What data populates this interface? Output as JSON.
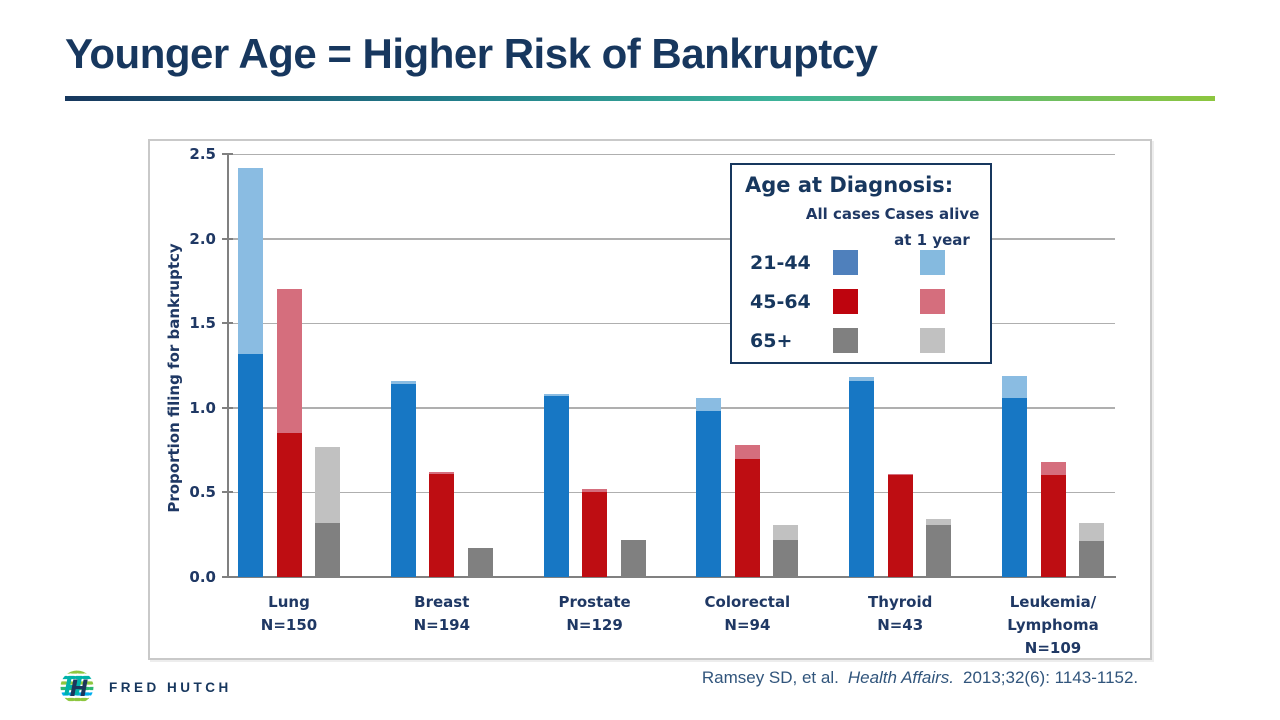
{
  "slide": {
    "title": "Younger Age = Higher Risk of Bankruptcy",
    "citation": {
      "prefix": "Ramsey SD, et al.",
      "journal": "Health Affairs.",
      "suffix": "2013;32(6): 1143-1152."
    },
    "logo_text": "FRED HUTCH"
  },
  "colors": {
    "navy": "#17375E",
    "chart_text_navy": "#1F3864",
    "accent_green": "#8DC63F",
    "accent_teal": "#2AA79B",
    "citation_blue": "#31557C",
    "gridline_gray": "#AFAFAF"
  },
  "chart_data": {
    "type": "bar",
    "title": "",
    "xlabel": "",
    "ylabel": "Proportion filing for bankruptcy",
    "ylim": [
      0,
      2.5
    ],
    "yticks": [
      0.0,
      0.5,
      1.0,
      1.5,
      2.0,
      2.5
    ],
    "grid": true,
    "legend_position": "top-right",
    "legend": {
      "title": "Age at Diagnosis:",
      "col_all": "All cases",
      "col_alive_line1": "Cases alive",
      "col_alive_line2": "at 1 year"
    },
    "categories": [
      {
        "name_lines": [
          "Lung"
        ],
        "n": "N=150"
      },
      {
        "name_lines": [
          "Breast"
        ],
        "n": "N=194"
      },
      {
        "name_lines": [
          "Prostate"
        ],
        "n": "N=129"
      },
      {
        "name_lines": [
          "Colorectal"
        ],
        "n": "N=94"
      },
      {
        "name_lines": [
          "Thyroid"
        ],
        "n": "N=43"
      },
      {
        "name_lines": [
          "Leukemia/",
          "Lymphoma"
        ],
        "n": "N=109"
      }
    ],
    "age_groups": [
      {
        "label": "21-44",
        "bar_all": "#1777C4",
        "bar_alive": "#8ABCE2",
        "swatch_all": "#4F80BC",
        "swatch_alive": "#85BADF",
        "all": [
          1.32,
          1.14,
          1.07,
          0.98,
          1.16,
          1.06
        ],
        "alive": [
          2.42,
          1.16,
          1.08,
          1.06,
          1.18,
          1.19
        ]
      },
      {
        "label": "45-64",
        "bar_all": "#BE0D12",
        "bar_alive": "#D56E7D",
        "swatch_all": "#BE040E",
        "swatch_alive": "#D56E7D",
        "all": [
          0.85,
          0.61,
          0.5,
          0.7,
          0.6,
          0.6
        ],
        "alive": [
          1.7,
          0.62,
          0.52,
          0.78,
          0.61,
          0.68
        ]
      },
      {
        "label": "65+",
        "bar_all": "#808080",
        "bar_alive": "#C1C1C1",
        "swatch_all": "#808080",
        "swatch_alive": "#C1C1C1",
        "all": [
          0.32,
          0.17,
          0.22,
          0.22,
          0.31,
          0.21
        ],
        "alive": [
          0.77,
          0.17,
          0.22,
          0.31,
          0.34,
          0.32
        ]
      }
    ]
  }
}
